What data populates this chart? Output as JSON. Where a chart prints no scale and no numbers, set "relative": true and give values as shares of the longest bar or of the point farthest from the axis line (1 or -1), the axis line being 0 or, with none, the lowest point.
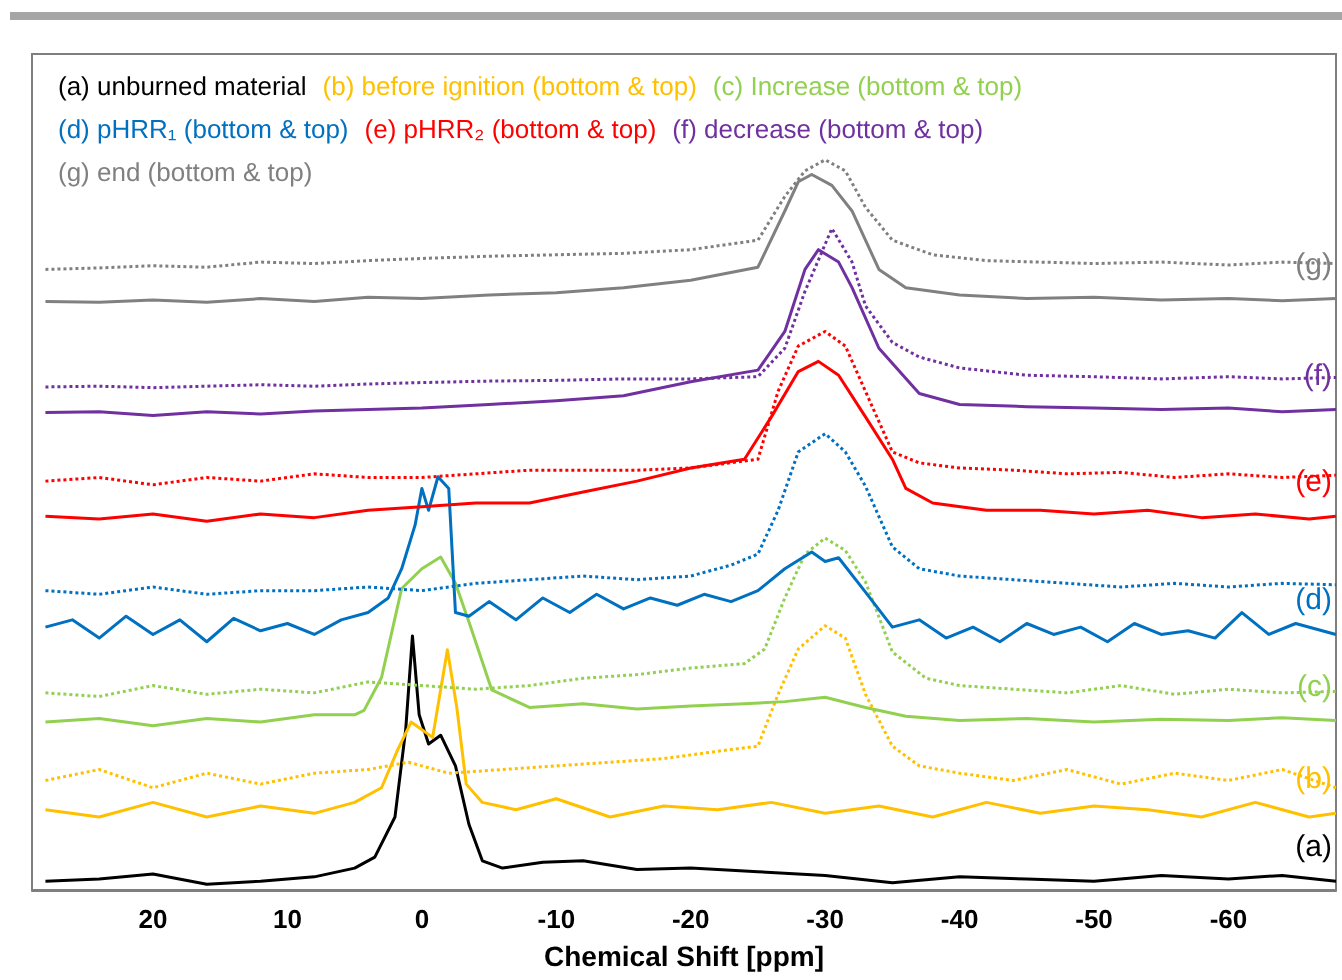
{
  "chart_data": {
    "type": "line",
    "relative": true,
    "xlabel": "Chemical Shift [ppm]",
    "xlim": [
      29,
      -68
    ],
    "xticks": [
      20,
      10,
      0,
      -10,
      -20,
      -30,
      -40,
      -50,
      -60
    ],
    "grid": false,
    "legend": "top left",
    "marker": "none",
    "tick_labels": "x",
    "series": [
      {
        "name": "(a) unburned material",
        "color": "#000000",
        "line_style": "solid",
        "x": [
          28,
          24,
          20,
          16,
          12,
          8,
          5,
          3.5,
          2,
          1.2,
          0.7,
          0.2,
          -0.5,
          -1.4,
          -2.5,
          -3.5,
          -4.5,
          -6,
          -9,
          -12,
          -16,
          -20,
          -25,
          -30,
          -35,
          -40,
          -45,
          -50,
          -55,
          -60,
          -64,
          -68
        ],
        "values": [
          0.012,
          0.015,
          0.022,
          0.008,
          0.012,
          0.018,
          0.03,
          0.045,
          0.1,
          0.22,
          0.348,
          0.24,
          0.2,
          0.212,
          0.17,
          0.09,
          0.04,
          0.03,
          0.038,
          0.04,
          0.028,
          0.03,
          0.025,
          0.02,
          0.01,
          0.018,
          0.015,
          0.012,
          0.02,
          0.015,
          0.02,
          0.012
        ]
      },
      {
        "name": "(b) before ignition (bottom & top)",
        "color": "#ffc000",
        "line_style": "solid",
        "x": [
          28,
          24,
          20,
          16,
          12,
          8,
          5,
          3,
          1.8,
          0.8,
          -0.8,
          -1.9,
          -2.6,
          -3.3,
          -4.5,
          -7,
          -10,
          -14,
          -18,
          -22,
          -26,
          -30,
          -34,
          -38,
          -42,
          -46,
          -50,
          -54,
          -58,
          -62,
          -66,
          -68
        ],
        "values": [
          0.11,
          0.1,
          0.12,
          0.1,
          0.115,
          0.105,
          0.12,
          0.14,
          0.192,
          0.23,
          0.209,
          0.329,
          0.25,
          0.145,
          0.12,
          0.11,
          0.125,
          0.1,
          0.115,
          0.11,
          0.12,
          0.105,
          0.115,
          0.1,
          0.12,
          0.105,
          0.115,
          0.11,
          0.1,
          0.12,
          0.1,
          0.105
        ]
      },
      {
        "color": "#ffc000",
        "line_style": "dotted",
        "x": [
          28,
          24,
          20,
          16,
          12,
          8,
          4,
          1,
          -2,
          -6,
          -10,
          -14,
          -18,
          -22,
          -25,
          -26.5,
          -28,
          -30,
          -31.5,
          -33,
          -35,
          -37,
          -40,
          -44,
          -48,
          -52,
          -56,
          -60,
          -64,
          -68
        ],
        "values": [
          0.15,
          0.165,
          0.14,
          0.16,
          0.145,
          0.16,
          0.165,
          0.175,
          0.16,
          0.165,
          0.17,
          0.175,
          0.18,
          0.19,
          0.197,
          0.268,
          0.33,
          0.362,
          0.345,
          0.268,
          0.197,
          0.17,
          0.16,
          0.15,
          0.165,
          0.145,
          0.16,
          0.15,
          0.165,
          0.14
        ]
      },
      {
        "name": "(c) Increase (bottom & top)",
        "color": "#92d050",
        "line_style": "solid",
        "x": [
          28,
          24,
          20,
          16,
          12,
          8,
          5,
          4.3,
          3,
          1.5,
          0,
          -1.4,
          -2.5,
          -3.6,
          -5.2,
          -8,
          -12,
          -16,
          -20,
          -24,
          -27,
          -30,
          -33,
          -36,
          -40,
          -45,
          -50,
          -55,
          -60,
          -64,
          -68
        ],
        "values": [
          0.23,
          0.235,
          0.225,
          0.235,
          0.23,
          0.24,
          0.24,
          0.246,
          0.291,
          0.413,
          0.44,
          0.456,
          0.42,
          0.362,
          0.274,
          0.25,
          0.255,
          0.248,
          0.252,
          0.255,
          0.258,
          0.264,
          0.25,
          0.238,
          0.232,
          0.235,
          0.23,
          0.234,
          0.232,
          0.236,
          0.232
        ]
      },
      {
        "color": "#92d050",
        "line_style": "dotted",
        "x": [
          28,
          24,
          20,
          16,
          12,
          8,
          4,
          0,
          -4,
          -8,
          -12,
          -16,
          -20,
          -24,
          -25.5,
          -27,
          -28.5,
          -30,
          -31.5,
          -33,
          -35,
          -37.5,
          -40,
          -44,
          -48,
          -52,
          -56,
          -60,
          -64,
          -68
        ],
        "values": [
          0.27,
          0.265,
          0.28,
          0.268,
          0.275,
          0.27,
          0.285,
          0.28,
          0.275,
          0.28,
          0.29,
          0.295,
          0.304,
          0.31,
          0.33,
          0.4,
          0.46,
          0.482,
          0.465,
          0.422,
          0.326,
          0.29,
          0.28,
          0.275,
          0.27,
          0.28,
          0.268,
          0.275,
          0.27,
          0.272
        ]
      },
      {
        "name": "(d) pHRR₁ (bottom & top)",
        "color": "#0070c0",
        "line_style": "solid",
        "x": [
          28,
          26,
          24,
          22,
          20,
          18,
          16,
          14,
          12,
          10,
          8,
          6,
          4,
          2.5,
          1.5,
          0.5,
          0,
          -0.5,
          -1.2,
          -2,
          -2.5,
          -3.5,
          -5,
          -7,
          -9,
          -11,
          -13,
          -15,
          -17,
          -19,
          -21,
          -23,
          -25,
          -27,
          -29,
          -30,
          -31,
          -33,
          -35,
          -37,
          -39,
          -41,
          -43,
          -45,
          -47,
          -49,
          -51,
          -53,
          -55,
          -57,
          -59,
          -61,
          -63,
          -65,
          -68
        ],
        "values": [
          0.36,
          0.37,
          0.345,
          0.375,
          0.35,
          0.37,
          0.34,
          0.372,
          0.355,
          0.365,
          0.35,
          0.37,
          0.38,
          0.4,
          0.44,
          0.5,
          0.55,
          0.52,
          0.566,
          0.55,
          0.38,
          0.375,
          0.395,
          0.37,
          0.4,
          0.38,
          0.405,
          0.385,
          0.4,
          0.39,
          0.405,
          0.395,
          0.41,
          0.44,
          0.463,
          0.45,
          0.455,
          0.408,
          0.36,
          0.37,
          0.345,
          0.36,
          0.34,
          0.365,
          0.35,
          0.36,
          0.34,
          0.365,
          0.35,
          0.355,
          0.345,
          0.38,
          0.35,
          0.365,
          0.35
        ]
      },
      {
        "color": "#0070c0",
        "line_style": "dotted",
        "x": [
          28,
          24,
          20,
          16,
          12,
          8,
          4,
          0,
          -4,
          -8,
          -12,
          -16,
          -20,
          -23,
          -25,
          -26.5,
          -28,
          -30,
          -31.5,
          -33,
          -35,
          -37,
          -40,
          -44,
          -48,
          -52,
          -56,
          -60,
          -64,
          -68
        ],
        "values": [
          0.41,
          0.405,
          0.415,
          0.405,
          0.41,
          0.41,
          0.415,
          0.41,
          0.42,
          0.425,
          0.43,
          0.425,
          0.43,
          0.445,
          0.46,
          0.52,
          0.6,
          0.625,
          0.6,
          0.553,
          0.47,
          0.44,
          0.43,
          0.425,
          0.42,
          0.415,
          0.42,
          0.415,
          0.42,
          0.418
        ]
      },
      {
        "name": "(e) pHRR₂ (bottom & top)",
        "color": "#ff0000",
        "line_style": "solid",
        "x": [
          28,
          24,
          20,
          16,
          12,
          8,
          4,
          0,
          -4,
          -8,
          -12,
          -16,
          -20,
          -24,
          -26,
          -28,
          -29.5,
          -31,
          -33,
          -35,
          -36,
          -38,
          -42,
          -46,
          -50,
          -54,
          -58,
          -62,
          -66,
          -68
        ],
        "values": [
          0.512,
          0.508,
          0.515,
          0.505,
          0.515,
          0.51,
          0.52,
          0.525,
          0.53,
          0.53,
          0.545,
          0.56,
          0.578,
          0.59,
          0.648,
          0.71,
          0.724,
          0.705,
          0.648,
          0.59,
          0.55,
          0.53,
          0.52,
          0.52,
          0.515,
          0.52,
          0.51,
          0.515,
          0.508,
          0.512
        ]
      },
      {
        "color": "#ff0000",
        "line_style": "dotted",
        "x": [
          28,
          24,
          20,
          16,
          12,
          8,
          4,
          0,
          -4,
          -8,
          -12,
          -16,
          -20,
          -25,
          -26.5,
          -28,
          -30,
          -31.5,
          -33,
          -35,
          -37,
          -40,
          -44,
          -48,
          -52,
          -56,
          -60,
          -64,
          -68
        ],
        "values": [
          0.56,
          0.565,
          0.555,
          0.565,
          0.56,
          0.57,
          0.565,
          0.565,
          0.57,
          0.575,
          0.575,
          0.575,
          0.578,
          0.59,
          0.683,
          0.745,
          0.765,
          0.745,
          0.683,
          0.6,
          0.585,
          0.578,
          0.575,
          0.57,
          0.572,
          0.565,
          0.57,
          0.565,
          0.568
        ]
      },
      {
        "name": "(f) decrease (bottom & top)",
        "color": "#7030a0",
        "line_style": "solid",
        "x": [
          28,
          24,
          20,
          16,
          12,
          8,
          4,
          0,
          -5,
          -10,
          -15,
          -20,
          -25,
          -27,
          -28.5,
          -29.5,
          -31,
          -32,
          -34,
          -37,
          -40,
          -45,
          -50,
          -55,
          -60,
          -64,
          -68
        ],
        "values": [
          0.654,
          0.655,
          0.65,
          0.655,
          0.652,
          0.656,
          0.658,
          0.66,
          0.665,
          0.67,
          0.677,
          0.696,
          0.712,
          0.765,
          0.85,
          0.877,
          0.86,
          0.825,
          0.742,
          0.68,
          0.665,
          0.662,
          0.66,
          0.658,
          0.66,
          0.655,
          0.658
        ]
      },
      {
        "color": "#7030a0",
        "line_style": "dotted",
        "x": [
          28,
          24,
          20,
          16,
          12,
          8,
          4,
          0,
          -5,
          -10,
          -15,
          -20,
          -25,
          -27,
          -28.5,
          -30.5,
          -32,
          -33,
          -35,
          -37,
          -40,
          -45,
          -50,
          -55,
          -60,
          -64,
          -68
        ],
        "values": [
          0.689,
          0.69,
          0.688,
          0.69,
          0.692,
          0.69,
          0.693,
          0.695,
          0.697,
          0.698,
          0.7,
          0.7,
          0.703,
          0.742,
          0.82,
          0.906,
          0.86,
          0.8,
          0.75,
          0.73,
          0.715,
          0.705,
          0.703,
          0.7,
          0.703,
          0.7,
          0.702
        ]
      },
      {
        "name": "(g) end (bottom & top)",
        "color": "#808080",
        "line_style": "solid",
        "x": [
          28,
          24,
          20,
          16,
          12,
          8,
          4,
          0,
          -5,
          -10,
          -15,
          -20,
          -25,
          -27,
          -28,
          -29,
          -30.5,
          -32,
          -34,
          -36,
          -40,
          -45,
          -50,
          -55,
          -60,
          -64,
          -68
        ],
        "values": [
          0.806,
          0.805,
          0.808,
          0.805,
          0.81,
          0.806,
          0.812,
          0.81,
          0.815,
          0.818,
          0.825,
          0.835,
          0.853,
          0.93,
          0.97,
          0.98,
          0.965,
          0.93,
          0.85,
          0.825,
          0.815,
          0.81,
          0.812,
          0.808,
          0.81,
          0.807,
          0.81
        ]
      },
      {
        "color": "#808080",
        "line_style": "dotted",
        "x": [
          28,
          24,
          20,
          16,
          12,
          8,
          4,
          0,
          -5,
          -10,
          -15,
          -20,
          -25,
          -27,
          -28.5,
          -30,
          -31.5,
          -33,
          -35,
          -38,
          -42,
          -46,
          -50,
          -55,
          -60,
          -64,
          -68
        ],
        "values": [
          0.85,
          0.852,
          0.855,
          0.853,
          0.86,
          0.858,
          0.862,
          0.865,
          0.868,
          0.87,
          0.872,
          0.877,
          0.89,
          0.95,
          0.985,
          1.0,
          0.985,
          0.935,
          0.89,
          0.87,
          0.862,
          0.86,
          0.858,
          0.86,
          0.856,
          0.86,
          0.858
        ]
      }
    ],
    "annotations": [
      "(a)",
      "(b)",
      "(c)",
      "(d)",
      "(e)",
      "(f)",
      "(g)"
    ]
  }
}
